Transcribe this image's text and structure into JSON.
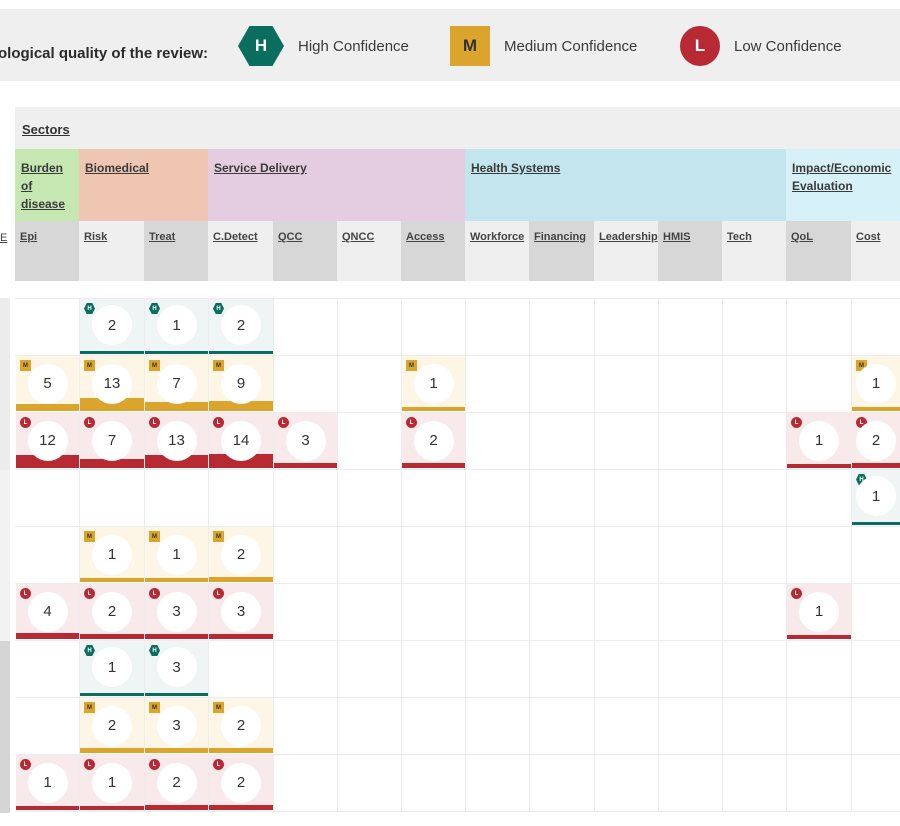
{
  "legend": {
    "label": "ological quality of the review:",
    "items": [
      {
        "level": "H",
        "letter": "H",
        "text": "High Confidence"
      },
      {
        "level": "M",
        "letter": "M",
        "text": "Medium Confidence"
      },
      {
        "level": "L",
        "letter": "L",
        "text": "Low Confidence"
      }
    ]
  },
  "sectors_label": "Sectors",
  "left_partial_label": "E",
  "colors": {
    "high": "#0a6e5e",
    "medium": "#dba52d",
    "low": "#b72a33"
  },
  "groups": [
    {
      "label": "Burden of disease",
      "color": "#c5e7b2"
    },
    {
      "label": "Biomedical",
      "color": "#eec6b1"
    },
    {
      "label": "Service Delivery",
      "color": "#e5cde1"
    },
    {
      "label": "Health Systems",
      "color": "#c3e6ee"
    },
    {
      "label": "Impact/Economic Evaluation",
      "color": "#d6f2f8"
    }
  ],
  "subcolumns": [
    "Epi",
    "Risk",
    "Treat",
    "C.Detect",
    "QCC",
    "QNCC",
    "Access",
    "Workforce",
    "Financing",
    "Leadership",
    "HMIS",
    "Tech",
    "QoL",
    "Cost"
  ],
  "rows": [
    {
      "cells": [
        null,
        {
          "level": "H",
          "count": 2
        },
        {
          "level": "H",
          "count": 1
        },
        {
          "level": "H",
          "count": 2
        },
        null,
        null,
        null,
        null,
        null,
        null,
        null,
        null,
        null,
        null
      ]
    },
    {
      "cells": [
        {
          "level": "M",
          "count": 5
        },
        {
          "level": "M",
          "count": 13
        },
        {
          "level": "M",
          "count": 7
        },
        {
          "level": "M",
          "count": 9
        },
        null,
        null,
        {
          "level": "M",
          "count": 1
        },
        null,
        null,
        null,
        null,
        null,
        null,
        {
          "level": "M",
          "count": 1
        }
      ]
    },
    {
      "cells": [
        {
          "level": "L",
          "count": 12
        },
        {
          "level": "L",
          "count": 7
        },
        {
          "level": "L",
          "count": 13
        },
        {
          "level": "L",
          "count": 14
        },
        {
          "level": "L",
          "count": 3
        },
        null,
        {
          "level": "L",
          "count": 2
        },
        null,
        null,
        null,
        null,
        null,
        {
          "level": "L",
          "count": 1
        },
        {
          "level": "L",
          "count": 2
        }
      ]
    },
    {
      "cells": [
        null,
        null,
        null,
        null,
        null,
        null,
        null,
        null,
        null,
        null,
        null,
        null,
        null,
        {
          "level": "H",
          "count": 1
        }
      ]
    },
    {
      "cells": [
        null,
        {
          "level": "M",
          "count": 1
        },
        {
          "level": "M",
          "count": 1
        },
        {
          "level": "M",
          "count": 2
        },
        null,
        null,
        null,
        null,
        null,
        null,
        null,
        null,
        null,
        null
      ]
    },
    {
      "cells": [
        {
          "level": "L",
          "count": 4
        },
        {
          "level": "L",
          "count": 2
        },
        {
          "level": "L",
          "count": 3
        },
        {
          "level": "L",
          "count": 3
        },
        null,
        null,
        null,
        null,
        null,
        null,
        null,
        null,
        {
          "level": "L",
          "count": 1
        },
        null
      ]
    },
    {
      "cells": [
        null,
        {
          "level": "H",
          "count": 1
        },
        {
          "level": "H",
          "count": 3
        },
        null,
        null,
        null,
        null,
        null,
        null,
        null,
        null,
        null,
        null,
        null
      ]
    },
    {
      "cells": [
        null,
        {
          "level": "M",
          "count": 2
        },
        {
          "level": "M",
          "count": 3
        },
        {
          "level": "M",
          "count": 2
        },
        null,
        null,
        null,
        null,
        null,
        null,
        null,
        null,
        null,
        null
      ]
    },
    {
      "cells": [
        {
          "level": "L",
          "count": 1
        },
        {
          "level": "L",
          "count": 1
        },
        {
          "level": "L",
          "count": 2
        },
        {
          "level": "L",
          "count": 2
        },
        null,
        null,
        null,
        null,
        null,
        null,
        null,
        null,
        null,
        null
      ]
    }
  ]
}
